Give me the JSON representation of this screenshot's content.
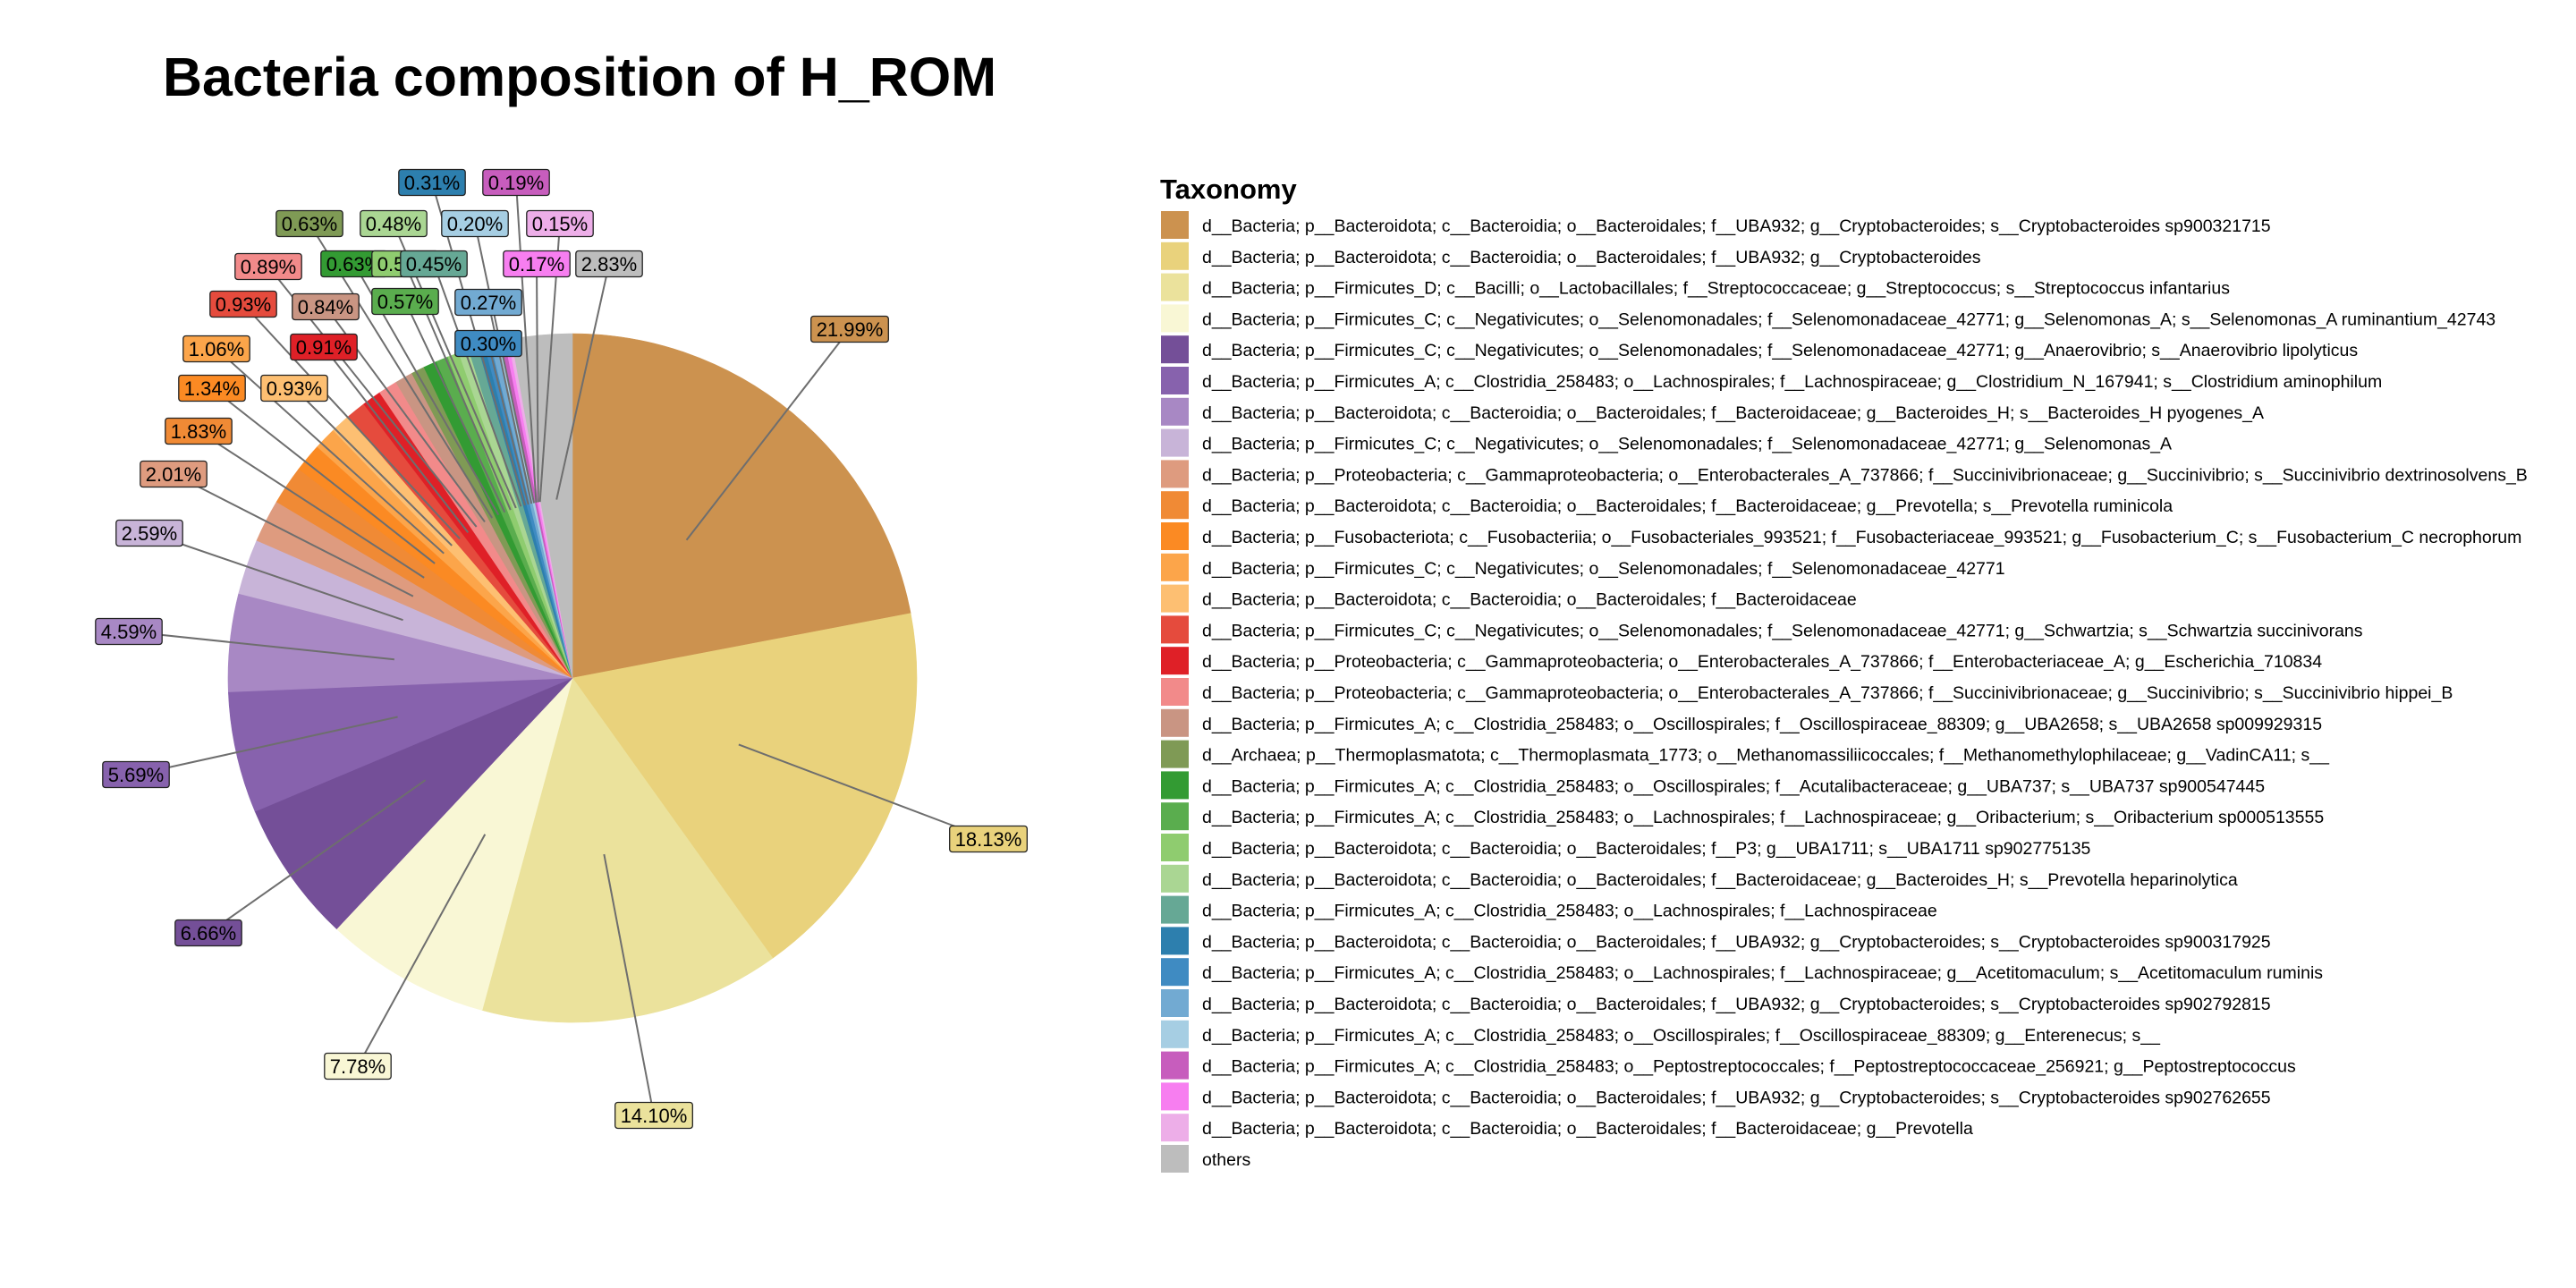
{
  "chart_data": {
    "type": "pie",
    "title": "Bacteria composition of H_ROM",
    "legend_title": "Taxonomy",
    "legend_position": "right",
    "start": "12 o'clock",
    "direction": "clockwise",
    "slices": [
      {
        "name": "d__Bacteria; p__Bacteroidota; c__Bacteroidia; o__Bacteroidales; f__UBA932; g__Cryptobacteroides; s__Cryptobacteroides sp900321715",
        "value": 21.99,
        "label": "21.99%",
        "color": "#cc924f"
      },
      {
        "name": "d__Bacteria; p__Bacteroidota; c__Bacteroidia; o__Bacteroidales; f__UBA932; g__Cryptobacteroides",
        "value": 18.13,
        "label": "18.13%",
        "color": "#e9d27c"
      },
      {
        "name": "d__Bacteria; p__Firmicutes_D; c__Bacilli; o__Lactobacillales; f__Streptococcaceae; g__Streptococcus; s__Streptococcus infantarius",
        "value": 14.1,
        "label": "14.10%",
        "color": "#ebe29c"
      },
      {
        "name": "d__Bacteria; p__Firmicutes_C; c__Negativicutes; o__Selenomonadales; f__Selenomonadaceae_42771; g__Selenomonas_A; s__Selenomonas_A ruminantium_42743",
        "value": 7.78,
        "label": "7.78%",
        "color": "#f9f7d5"
      },
      {
        "name": "d__Bacteria; p__Firmicutes_C; c__Negativicutes; o__Selenomonadales; f__Selenomonadaceae_42771; g__Anaerovibrio; s__Anaerovibrio lipolyticus",
        "value": 6.66,
        "label": "6.66%",
        "color": "#744f98"
      },
      {
        "name": "d__Bacteria; p__Firmicutes_A; c__Clostridia_258483; o__Lachnospirales; f__Lachnospiraceae; g__Clostridium_N_167941; s__Clostridium aminophilum",
        "value": 5.69,
        "label": "5.69%",
        "color": "#8762ad"
      },
      {
        "name": "d__Bacteria; p__Bacteroidota; c__Bacteroidia; o__Bacteroidales; f__Bacteroidaceae; g__Bacteroides_H; s__Bacteroides_H pyogenes_A",
        "value": 4.59,
        "label": "4.59%",
        "color": "#a888c4"
      },
      {
        "name": "d__Bacteria; p__Firmicutes_C; c__Negativicutes; o__Selenomonadales; f__Selenomonadaceae_42771; g__Selenomonas_A",
        "value": 2.59,
        "label": "2.59%",
        "color": "#c8b4d8"
      },
      {
        "name": "d__Bacteria; p__Proteobacteria; c__Gammaproteobacteria; o__Enterobacterales_A_737866; f__Succinivibrionaceae; g__Succinivibrio; s__Succinivibrio dextrinosolvens_B",
        "value": 2.01,
        "label": "2.01%",
        "color": "#de9b7f"
      },
      {
        "name": "d__Bacteria; p__Bacteroidota; c__Bacteroidia; o__Bacteroidales; f__Bacteroidaceae; g__Prevotella; s__Prevotella ruminicola",
        "value": 1.83,
        "label": "1.83%",
        "color": "#f08a35"
      },
      {
        "name": "d__Bacteria; p__Fusobacteriota; c__Fusobacteriia; o__Fusobacteriales_993521; f__Fusobacteriaceae_993521; g__Fusobacterium_C; s__Fusobacterium_C necrophorum",
        "value": 1.34,
        "label": "1.34%",
        "color": "#fb8a23"
      },
      {
        "name": "d__Bacteria; p__Firmicutes_C; c__Negativicutes; o__Selenomonadales; f__Selenomonadaceae_42771",
        "value": 1.06,
        "label": "1.06%",
        "color": "#fca54a"
      },
      {
        "name": "d__Bacteria; p__Bacteroidota; c__Bacteroidia; o__Bacteroidales; f__Bacteroidaceae",
        "value": 0.93,
        "label": "0.93%",
        "color": "#fdbf72"
      },
      {
        "name": "d__Bacteria; p__Firmicutes_C; c__Negativicutes; o__Selenomonadales; f__Selenomonadaceae_42771; g__Schwartzia; s__Schwartzia succinivorans",
        "value": 0.93,
        "label": "0.93%",
        "color": "#e54b3d"
      },
      {
        "name": "d__Bacteria; p__Proteobacteria; c__Gammaproteobacteria; o__Enterobacterales_A_737866; f__Enterobacteriaceae_A; g__Escherichia_710834",
        "value": 0.91,
        "label": "0.91%",
        "color": "#df2027"
      },
      {
        "name": "d__Bacteria; p__Proteobacteria; c__Gammaproteobacteria; o__Enterobacterales_A_737866; f__Succinivibrionaceae; g__Succinivibrio; s__Succinivibrio hippei_B",
        "value": 0.89,
        "label": "0.89%",
        "color": "#f28a8a"
      },
      {
        "name": "d__Bacteria; p__Firmicutes_A; c__Clostridia_258483; o__Oscillospirales; f__Oscillospiraceae_88309; g__UBA2658; s__UBA2658 sp009929315",
        "value": 0.84,
        "label": "0.84%",
        "color": "#c99583"
      },
      {
        "name": "d__Archaea; p__Thermoplasmatota; c__Thermoplasmata_1773; o__Methanomassiliicoccales; f__Methanomethylophilaceae; g__VadinCA11; s__",
        "value": 0.63,
        "label": "0.63%",
        "color": "#7f9a55"
      },
      {
        "name": "d__Bacteria; p__Firmicutes_A; c__Clostridia_258483; o__Oscillospirales; f__Acutalibacteraceae; g__UBA737; s__UBA737 sp900547445",
        "value": 0.63,
        "label": "0.63%",
        "color": "#339b33"
      },
      {
        "name": "d__Bacteria; p__Firmicutes_A; c__Clostridia_258483; o__Lachnospirales; f__Lachnospiraceae; g__Oribacterium; s__Oribacterium sp000513555",
        "value": 0.57,
        "label": "0.57%",
        "color": "#5aad4e"
      },
      {
        "name": "d__Bacteria; p__Bacteroidota; c__Bacteroidia; o__Bacteroidales; f__P3; g__UBA1711; s__UBA1711 sp902775135",
        "value": 0.54,
        "label": "0.54%",
        "color": "#8fcc6f"
      },
      {
        "name": "d__Bacteria; p__Bacteroidota; c__Bacteroidia; o__Bacteroidales; f__Bacteroidaceae; g__Bacteroides_H; s__Prevotella heparinolytica",
        "value": 0.48,
        "label": "0.48%",
        "color": "#aad693"
      },
      {
        "name": "d__Bacteria; p__Firmicutes_A; c__Clostridia_258483; o__Lachnospirales; f__Lachnospiraceae",
        "value": 0.45,
        "label": "0.45%",
        "color": "#66a895"
      },
      {
        "name": "d__Bacteria; p__Bacteroidota; c__Bacteroidia; o__Bacteroidales; f__UBA932; g__Cryptobacteroides; s__Cryptobacteroides sp900317925",
        "value": 0.31,
        "label": "0.31%",
        "color": "#2d7fae"
      },
      {
        "name": "d__Bacteria; p__Firmicutes_A; c__Clostridia_258483; o__Lachnospirales; f__Lachnospiraceae; g__Acetitomaculum; s__Acetitomaculum ruminis",
        "value": 0.3,
        "label": "0.30%",
        "color": "#3f8bc2"
      },
      {
        "name": "d__Bacteria; p__Bacteroidota; c__Bacteroidia; o__Bacteroidales; f__UBA932; g__Cryptobacteroides; s__Cryptobacteroides sp902792815",
        "value": 0.27,
        "label": "0.27%",
        "color": "#72aad2"
      },
      {
        "name": "d__Bacteria; p__Firmicutes_A; c__Clostridia_258483; o__Oscillospirales; f__Oscillospiraceae_88309; g__Enterenecus; s__",
        "value": 0.2,
        "label": "0.20%",
        "color": "#a6cee3"
      },
      {
        "name": "d__Bacteria; p__Firmicutes_A; c__Clostridia_258483; o__Peptostreptococcales; f__Peptostreptococcaceae_256921; g__Peptostreptococcus",
        "value": 0.19,
        "label": "0.19%",
        "color": "#c75dbd"
      },
      {
        "name": "d__Bacteria; p__Bacteroidota; c__Bacteroidia; o__Bacteroidales; f__UBA932; g__Cryptobacteroides; s__Cryptobacteroides sp902762655",
        "value": 0.17,
        "label": "0.17%",
        "color": "#f77ef0"
      },
      {
        "name": "d__Bacteria; p__Bacteroidota; c__Bacteroidia; o__Bacteroidales; f__Bacteroidaceae; g__Prevotella",
        "value": 0.15,
        "label": "0.15%",
        "color": "#edaee8"
      },
      {
        "name": "others",
        "value": 2.83,
        "label": "2.83%",
        "color": "#bdbdbd"
      }
    ]
  }
}
